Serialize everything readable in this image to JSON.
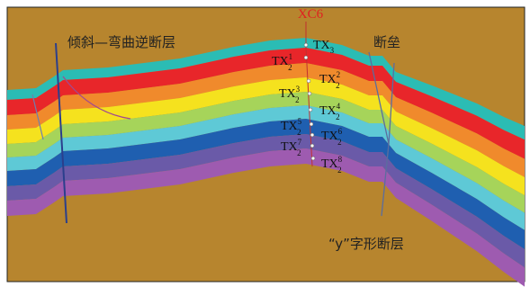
{
  "well": "XC6",
  "layers": [
    {
      "main": "TX",
      "sub": "3"
    },
    {
      "main": "TX",
      "sub": "2",
      "sup": "1"
    },
    {
      "main": "TX",
      "sub": "2",
      "sup": "2"
    },
    {
      "main": "TX",
      "sub": "2",
      "sup": "3"
    },
    {
      "main": "TX",
      "sub": "2",
      "sup": "4"
    },
    {
      "main": "TX",
      "sub": "2",
      "sup": "5"
    },
    {
      "main": "TX",
      "sub": "2",
      "sup": "6"
    },
    {
      "main": "TX",
      "sub": "2",
      "sup": "7"
    },
    {
      "main": "TX",
      "sub": "2",
      "sup": "8"
    }
  ],
  "faults": {
    "left": "倾斜—弯曲逆断层",
    "horst": "断垒",
    "right": "“y”字形断层"
  }
}
